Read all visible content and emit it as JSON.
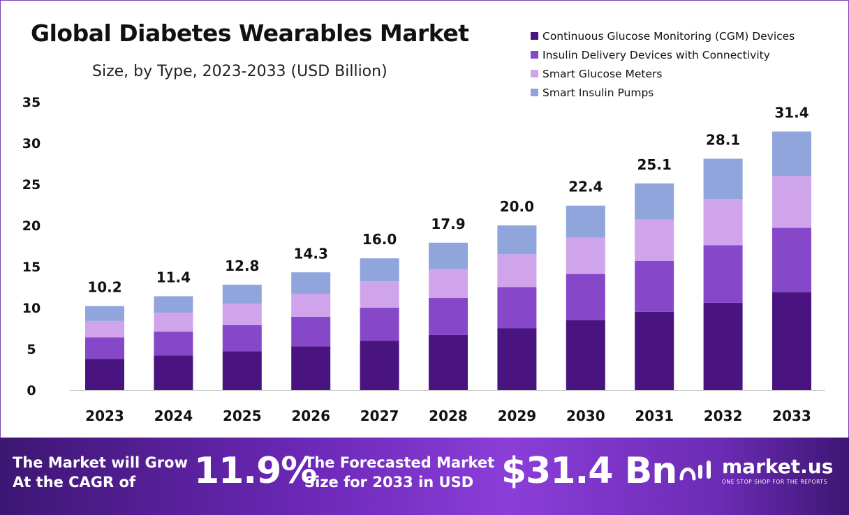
{
  "chart_data": {
    "type": "bar",
    "stacked": true,
    "title": "Global Diabetes Wearables Market",
    "subtitle": "Size, by Type, 2023-2033 (USD Billion)",
    "categories": [
      "2023",
      "2024",
      "2025",
      "2026",
      "2027",
      "2028",
      "2029",
      "2030",
      "2031",
      "2032",
      "2033"
    ],
    "totals": [
      "10.2",
      "11.4",
      "12.8",
      "14.3",
      "16.0",
      "17.9",
      "20.0",
      "22.4",
      "25.1",
      "28.1",
      "31.4"
    ],
    "ylim": [
      0,
      35
    ],
    "yticks": [
      "0",
      "5",
      "10",
      "15",
      "20",
      "25",
      "30",
      "35"
    ],
    "grid": false,
    "legend_position": "top-right",
    "series": [
      {
        "name": "Continuous Glucose Monitoring (CGM) Devices",
        "color": "#4a1480",
        "values": [
          3.8,
          4.2,
          4.7,
          5.3,
          6.0,
          6.7,
          7.5,
          8.5,
          9.5,
          10.6,
          11.9
        ]
      },
      {
        "name": "Insulin Delivery Devices with Connectivity",
        "color": "#8648c9",
        "values": [
          2.6,
          2.9,
          3.2,
          3.6,
          4.0,
          4.5,
          5.0,
          5.6,
          6.2,
          7.0,
          7.8
        ]
      },
      {
        "name": "Smart Glucose Meters",
        "color": "#d0a4ea",
        "values": [
          2.0,
          2.3,
          2.6,
          2.8,
          3.2,
          3.5,
          4.0,
          4.4,
          5.0,
          5.6,
          6.3
        ]
      },
      {
        "name": "Smart Insulin Pumps",
        "color": "#8fa5dc",
        "values": [
          1.8,
          2.0,
          2.3,
          2.6,
          2.8,
          3.2,
          3.5,
          3.9,
          4.4,
          4.9,
          5.4
        ]
      }
    ]
  },
  "banner": {
    "cagr_label_1": "The Market will Grow",
    "cagr_label_2": "At the CAGR of",
    "cagr_value": "11.9%",
    "forecast_label_1": "The Forecasted Market",
    "forecast_label_2": "Size for 2033 in USD",
    "forecast_value": "$31.4 Bn",
    "logo_name": "market.us",
    "logo_tagline": "ONE STOP SHOP FOR THE REPORTS"
  }
}
